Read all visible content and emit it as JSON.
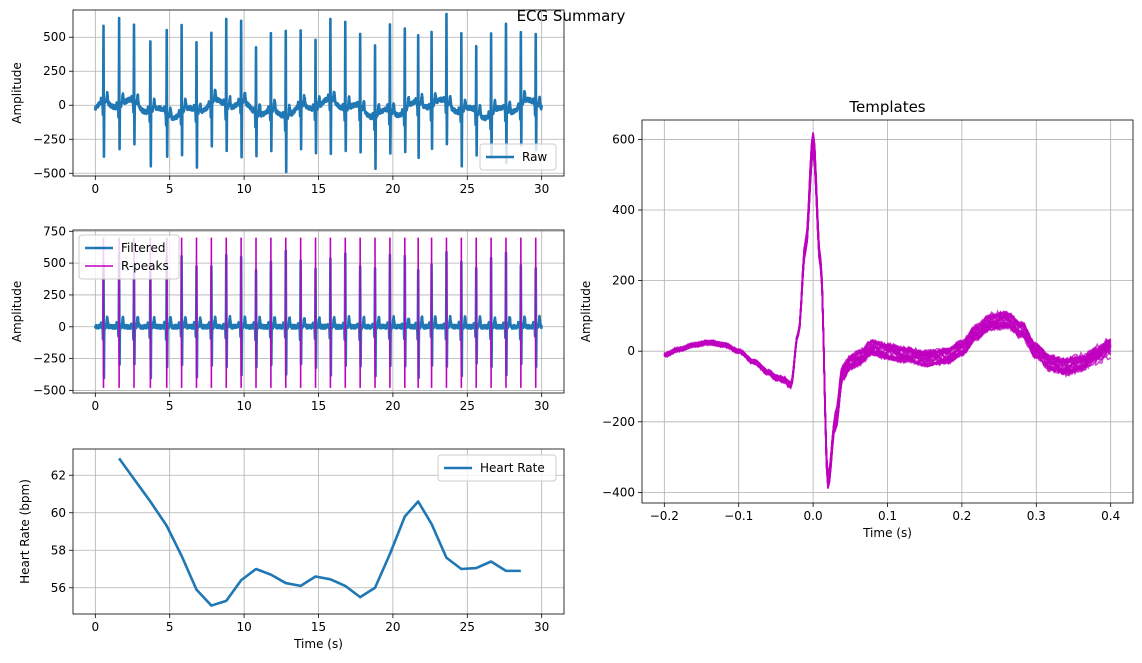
{
  "figure": {
    "title": "ECG Summary"
  },
  "colors": {
    "signal": "#1f77b4",
    "peaks": "#bf00bf",
    "templates": "#bf00bf",
    "grid": "#b0b0b0"
  },
  "chart_data": [
    {
      "id": "raw",
      "type": "line",
      "title": "",
      "xlabel": "",
      "ylabel": "Amplitude",
      "xlim": [
        -1.5,
        31.5
      ],
      "ylim": [
        -520,
        700
      ],
      "xticks": [
        0,
        5,
        10,
        15,
        20,
        25,
        30
      ],
      "yticks": [
        -500,
        -250,
        0,
        250,
        500
      ],
      "grid": true,
      "legend": "bottom-right",
      "series": [
        {
          "name": "Raw",
          "kind": "ecg",
          "baseline": -60,
          "r_amp": 620,
          "s_amp": -380
        }
      ]
    },
    {
      "id": "filtered",
      "type": "line",
      "title": "",
      "xlabel": "",
      "ylabel": "Amplitude",
      "xlim": [
        -1.5,
        31.5
      ],
      "ylim": [
        -520,
        760
      ],
      "xticks": [
        0,
        5,
        10,
        15,
        20,
        25,
        30
      ],
      "yticks": [
        -500,
        -250,
        0,
        250,
        500,
        750
      ],
      "grid": true,
      "legend": "top-left",
      "series": [
        {
          "name": "Filtered",
          "kind": "ecg",
          "baseline": 0,
          "r_amp": 560,
          "s_amp": -370
        },
        {
          "name": "R-peaks",
          "kind": "vlines",
          "ymin": -480,
          "ymax": 700
        }
      ]
    },
    {
      "id": "heart_rate",
      "type": "line",
      "title": "",
      "xlabel": "Time (s)",
      "ylabel": "Heart Rate (bpm)",
      "xlim": [
        -1.5,
        31.5
      ],
      "ylim": [
        54.6,
        63.4
      ],
      "xticks": [
        0,
        5,
        10,
        15,
        20,
        25,
        30
      ],
      "yticks": [
        56,
        58,
        60,
        62
      ],
      "grid": true,
      "legend": "top-right",
      "series": [
        {
          "name": "Heart Rate",
          "x": [
            1.6,
            2.6,
            3.7,
            4.8,
            5.8,
            6.8,
            7.8,
            8.8,
            9.8,
            10.8,
            11.8,
            12.8,
            13.8,
            14.8,
            15.8,
            16.8,
            17.8,
            18.8,
            19.8,
            20.8,
            21.7,
            22.6,
            23.6,
            24.6,
            25.6,
            26.6,
            27.6,
            28.6
          ],
          "y": [
            62.9,
            61.8,
            60.6,
            59.3,
            57.7,
            55.9,
            55.05,
            55.3,
            56.4,
            57.0,
            56.7,
            56.25,
            56.1,
            56.6,
            56.45,
            56.1,
            55.5,
            56.0,
            57.8,
            59.8,
            60.6,
            59.4,
            57.6,
            57.0,
            57.05,
            57.4,
            56.9,
            56.9
          ]
        }
      ]
    },
    {
      "id": "templates",
      "type": "line",
      "title": "Templates",
      "xlabel": "Time (s)",
      "ylabel": "Amplitude",
      "xlim": [
        -0.23,
        0.43
      ],
      "ylim": [
        -430,
        655
      ],
      "xticks": [
        -0.2,
        -0.1,
        0.0,
        0.1,
        0.2,
        0.3,
        0.4
      ],
      "xticklabels": [
        "−0.2",
        "−0.1",
        "0.0",
        "0.1",
        "0.2",
        "0.3",
        "0.4"
      ],
      "yticks": [
        -400,
        -200,
        0,
        200,
        400,
        600
      ],
      "grid": true,
      "template_count": 28,
      "mean_template": {
        "x": [
          -0.2,
          -0.18,
          -0.16,
          -0.14,
          -0.12,
          -0.1,
          -0.08,
          -0.06,
          -0.05,
          -0.04,
          -0.03,
          -0.02,
          -0.01,
          0.0,
          0.01,
          0.02,
          0.03,
          0.04,
          0.05,
          0.06,
          0.08,
          0.1,
          0.12,
          0.15,
          0.18,
          0.2,
          0.22,
          0.24,
          0.26,
          0.28,
          0.3,
          0.32,
          0.34,
          0.36,
          0.38,
          0.4
        ],
        "y": [
          -10,
          5,
          18,
          25,
          18,
          0,
          -30,
          -60,
          -75,
          -80,
          -95,
          50,
          300,
          590,
          250,
          -370,
          -200,
          -60,
          -30,
          -20,
          10,
          0,
          -10,
          -20,
          -15,
          10,
          55,
          85,
          90,
          60,
          0,
          -35,
          -45,
          -40,
          -20,
          0
        ]
      }
    }
  ]
}
